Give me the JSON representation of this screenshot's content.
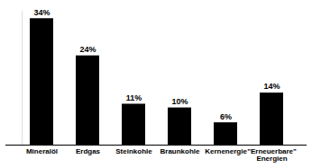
{
  "chart_data": {
    "type": "bar",
    "categories": [
      "Mineralöl",
      "Erdgas",
      "Steinkohle",
      "Braunkohle",
      "Kernenergie",
      "\"Erneuerbare\" Energien"
    ],
    "values": [
      34,
      24,
      11,
      10,
      6,
      14
    ],
    "value_labels": [
      "34%",
      "24%",
      "11%",
      "10%",
      "6%",
      "14%"
    ],
    "color": "#000000",
    "ylim": [
      0,
      36
    ],
    "yticks": [],
    "grid": false,
    "data_labels": true,
    "tick_labels": "x"
  }
}
